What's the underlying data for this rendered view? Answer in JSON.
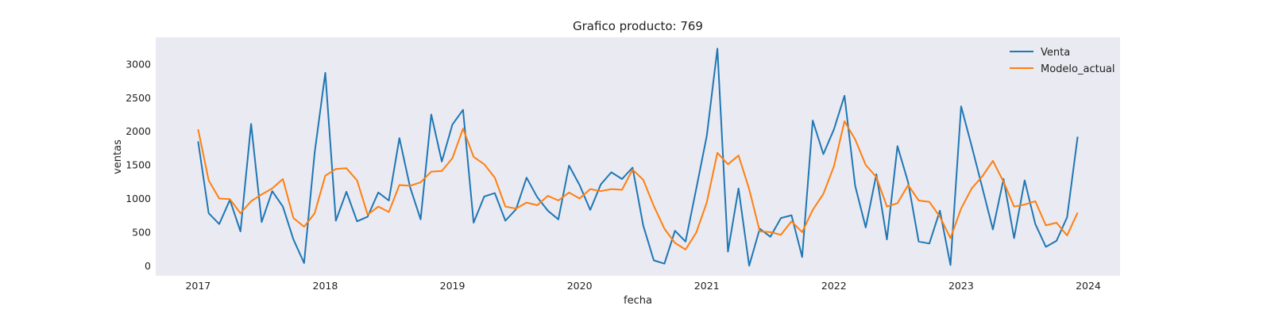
{
  "chart_data": {
    "type": "line",
    "title": "Grafico producto: 769",
    "xlabel": "fecha",
    "ylabel": "ventas",
    "x_start": "2017-01",
    "x_end": "2023-12",
    "x_ticks": [
      "2017",
      "2018",
      "2019",
      "2020",
      "2021",
      "2022",
      "2023",
      "2024"
    ],
    "y_ticks": [
      0,
      500,
      1000,
      1500,
      2000,
      2500,
      3000
    ],
    "xlim": [
      "2016-09",
      "2024-04"
    ],
    "ylim": [
      -150,
      3400
    ],
    "grid": false,
    "legend": "top-right",
    "series": [
      {
        "name": "Venta",
        "color": "#1f77b4",
        "values": [
          1850,
          780,
          620,
          980,
          510,
          2110,
          650,
          1110,
          880,
          390,
          40,
          1680,
          2870,
          670,
          1100,
          660,
          730,
          1090,
          970,
          1900,
          1170,
          690,
          2250,
          1550,
          2100,
          2320,
          640,
          1030,
          1080,
          670,
          840,
          1310,
          1020,
          820,
          690,
          1490,
          1200,
          830,
          1210,
          1390,
          1290,
          1460,
          600,
          80,
          30,
          520,
          360,
          1140,
          1930,
          3230,
          210,
          1150,
          0,
          550,
          430,
          710,
          750,
          130,
          2160,
          1660,
          2030,
          2530,
          1190,
          570,
          1360,
          390,
          1780,
          1240,
          360,
          330,
          820,
          10,
          2370,
          1780,
          1160,
          540,
          1290,
          410,
          1270,
          620,
          280,
          370,
          720,
          1920
        ]
      },
      {
        "name": "Modelo_actual",
        "color": "#ff7f0e",
        "values": [
          2030,
          1270,
          1000,
          990,
          780,
          960,
          1060,
          1150,
          1290,
          710,
          580,
          780,
          1340,
          1440,
          1450,
          1270,
          760,
          880,
          800,
          1200,
          1190,
          1240,
          1400,
          1410,
          1600,
          2040,
          1620,
          1510,
          1310,
          880,
          850,
          940,
          900,
          1040,
          970,
          1090,
          1000,
          1140,
          1110,
          1140,
          1130,
          1430,
          1280,
          890,
          550,
          340,
          240,
          490,
          940,
          1680,
          1510,
          1640,
          1140,
          510,
          500,
          460,
          660,
          500,
          830,
          1070,
          1480,
          2150,
          1880,
          1500,
          1320,
          880,
          930,
          1200,
          970,
          950,
          730,
          410,
          850,
          1150,
          1330,
          1560,
          1250,
          880,
          910,
          960,
          600,
          640,
          450,
          790
        ]
      }
    ]
  }
}
